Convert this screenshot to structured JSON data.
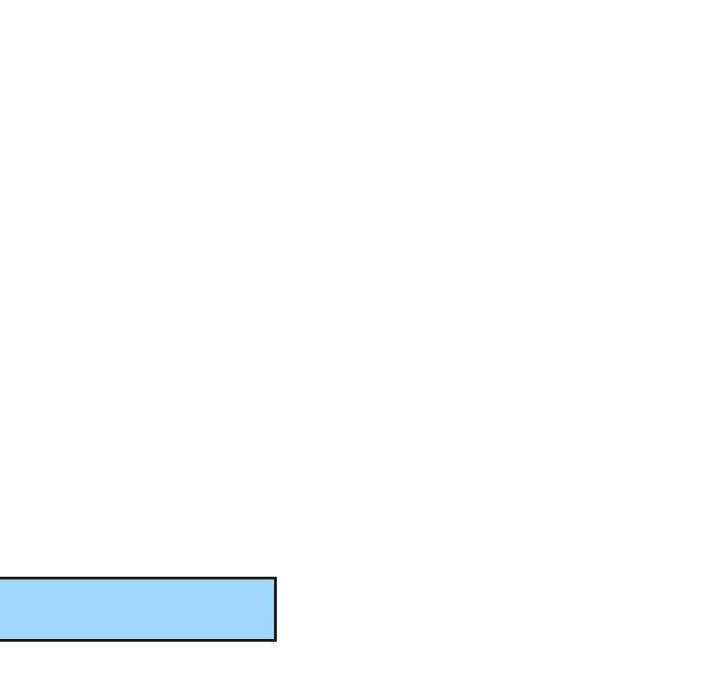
{
  "canvas": {
    "background": "#ffffff"
  },
  "bar": {
    "fill_color": "#a0d6fa",
    "border_color": "#111111"
  }
}
